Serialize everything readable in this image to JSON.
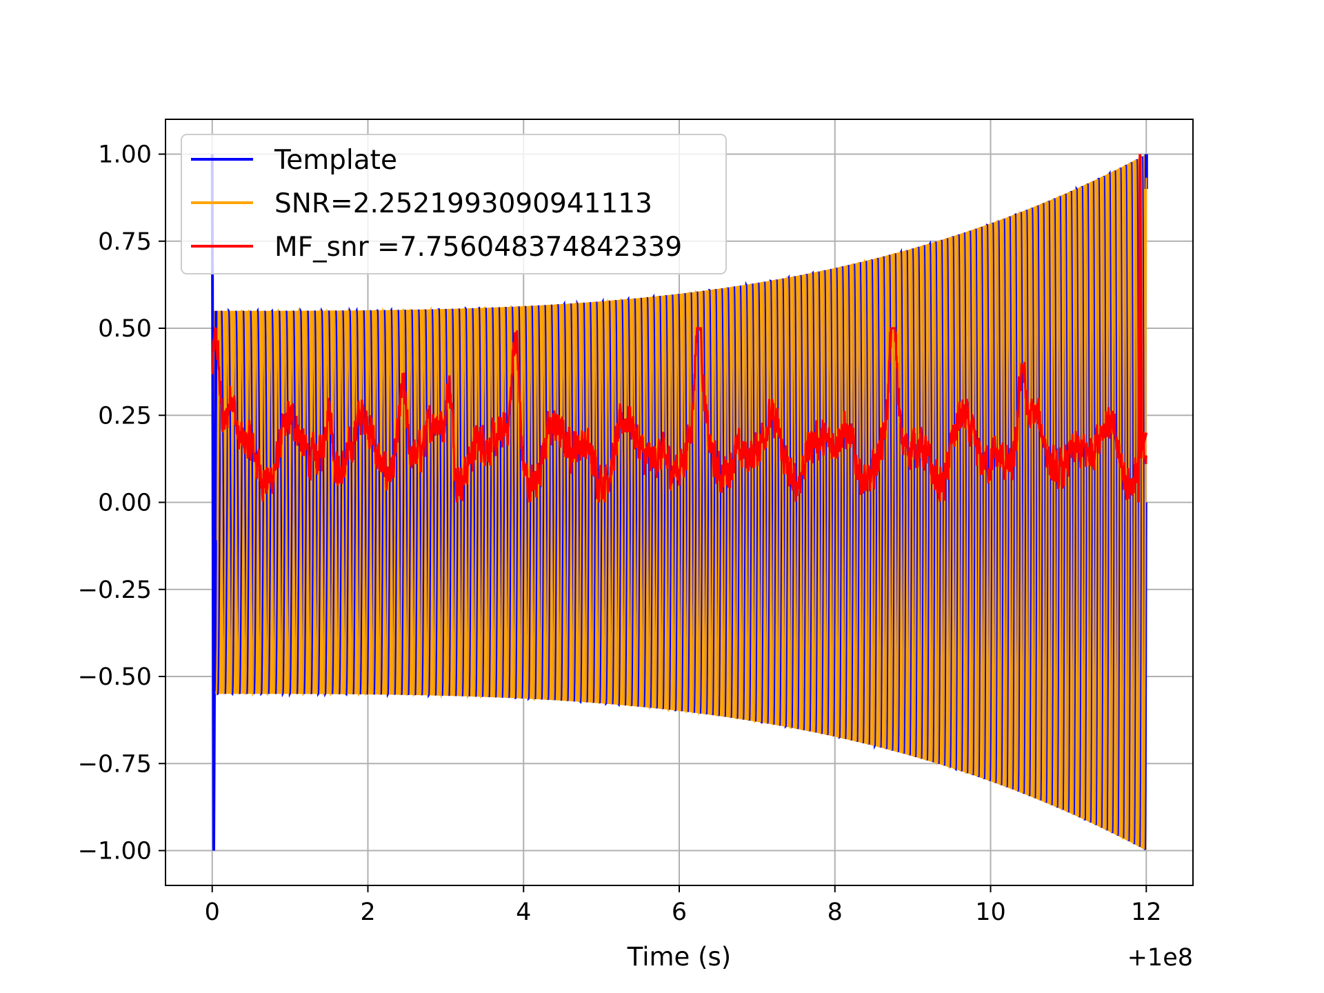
{
  "chart_data": {
    "type": "line",
    "title": "",
    "xlabel": "Time (s)",
    "ylabel": "",
    "x_offset_label": "+1e8",
    "xlim": [
      -0.6,
      12.6
    ],
    "ylim": [
      -1.1,
      1.1
    ],
    "xticks": [
      0,
      2,
      4,
      6,
      8,
      10,
      12
    ],
    "xtick_labels": [
      "0",
      "2",
      "4",
      "6",
      "8",
      "10",
      "12"
    ],
    "yticks": [
      1.0,
      0.75,
      0.5,
      0.25,
      0.0,
      -0.25,
      -0.5,
      -0.75,
      -1.0
    ],
    "ytick_labels": [
      "1.00",
      "0.75",
      "0.50",
      "0.25",
      "0.00",
      "−0.25",
      "−0.50",
      "−0.75",
      "−1.00"
    ],
    "grid": true,
    "legend_position": "top-left",
    "series": [
      {
        "name": "Template",
        "color": "#0000ff",
        "x_range": [
          0,
          12
        ],
        "description_values": {
          "amplitude_start": 0.55,
          "amplitude_end": 1.0,
          "initial_spike_range": [
            -1.0,
            1.0
          ],
          "cycles": 150
        }
      },
      {
        "name": "SNR=2.2521993090941113",
        "color": "#ffa500",
        "x_range": [
          0,
          12
        ],
        "description_values": {
          "amplitude_start": 0.55,
          "amplitude_end": 1.0,
          "cycles": 150
        }
      },
      {
        "name": "MF_snr =7.756048374842339",
        "color": "#ff0000",
        "x_range": [
          0,
          12
        ],
        "key_points": [
          {
            "x": 0.0,
            "y": 0.21
          },
          {
            "x": 0.05,
            "y": 0.38
          },
          {
            "x": 0.25,
            "y": 0.3
          },
          {
            "x": 1.5,
            "y": 0.3
          },
          {
            "x": 2.45,
            "y": 0.34
          },
          {
            "x": 3.05,
            "y": 0.36
          },
          {
            "x": 3.9,
            "y": 0.46
          },
          {
            "x": 6.25,
            "y": 0.46
          },
          {
            "x": 8.75,
            "y": 0.5
          },
          {
            "x": 9.4,
            "y": 0.12
          },
          {
            "x": 10.4,
            "y": 0.39
          },
          {
            "x": 11.9,
            "y": 0.0
          },
          {
            "x": 11.92,
            "y": 1.0
          },
          {
            "x": 12.0,
            "y": 0.2
          }
        ],
        "baseline": 0.15,
        "noise_range": [
          0.0,
          0.5
        ]
      }
    ]
  }
}
